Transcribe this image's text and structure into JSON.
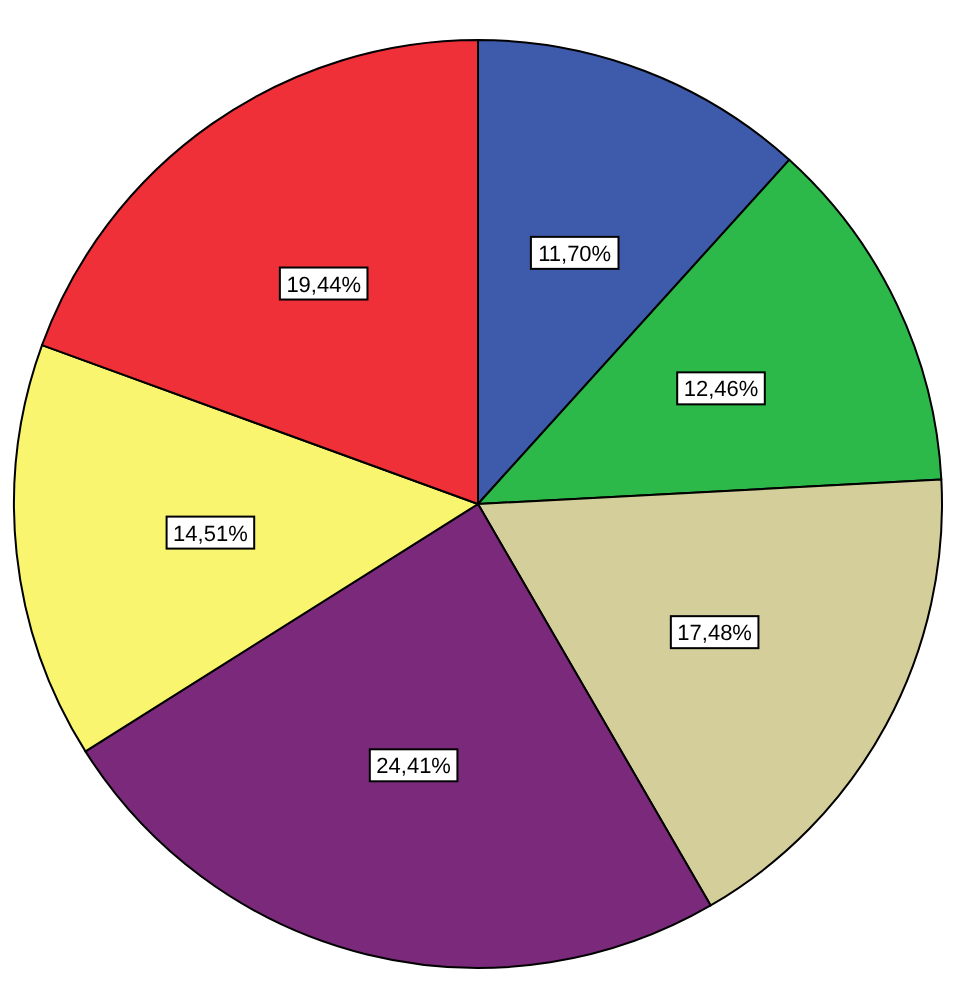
{
  "chart_data": {
    "type": "pie",
    "categories": [
      null,
      null,
      null,
      null,
      null,
      null
    ],
    "values": [
      11.7,
      12.46,
      17.48,
      24.41,
      14.51,
      19.44
    ],
    "colors": [
      "#3e5bab",
      "#2db84a",
      "#d4cf9a",
      "#7b2a7b",
      "#f9f56e",
      "#ef3038"
    ],
    "value_labels": [
      "11,70%",
      "12,46%",
      "17,48%",
      "24,41%",
      "14,51%",
      "19,44%"
    ]
  }
}
